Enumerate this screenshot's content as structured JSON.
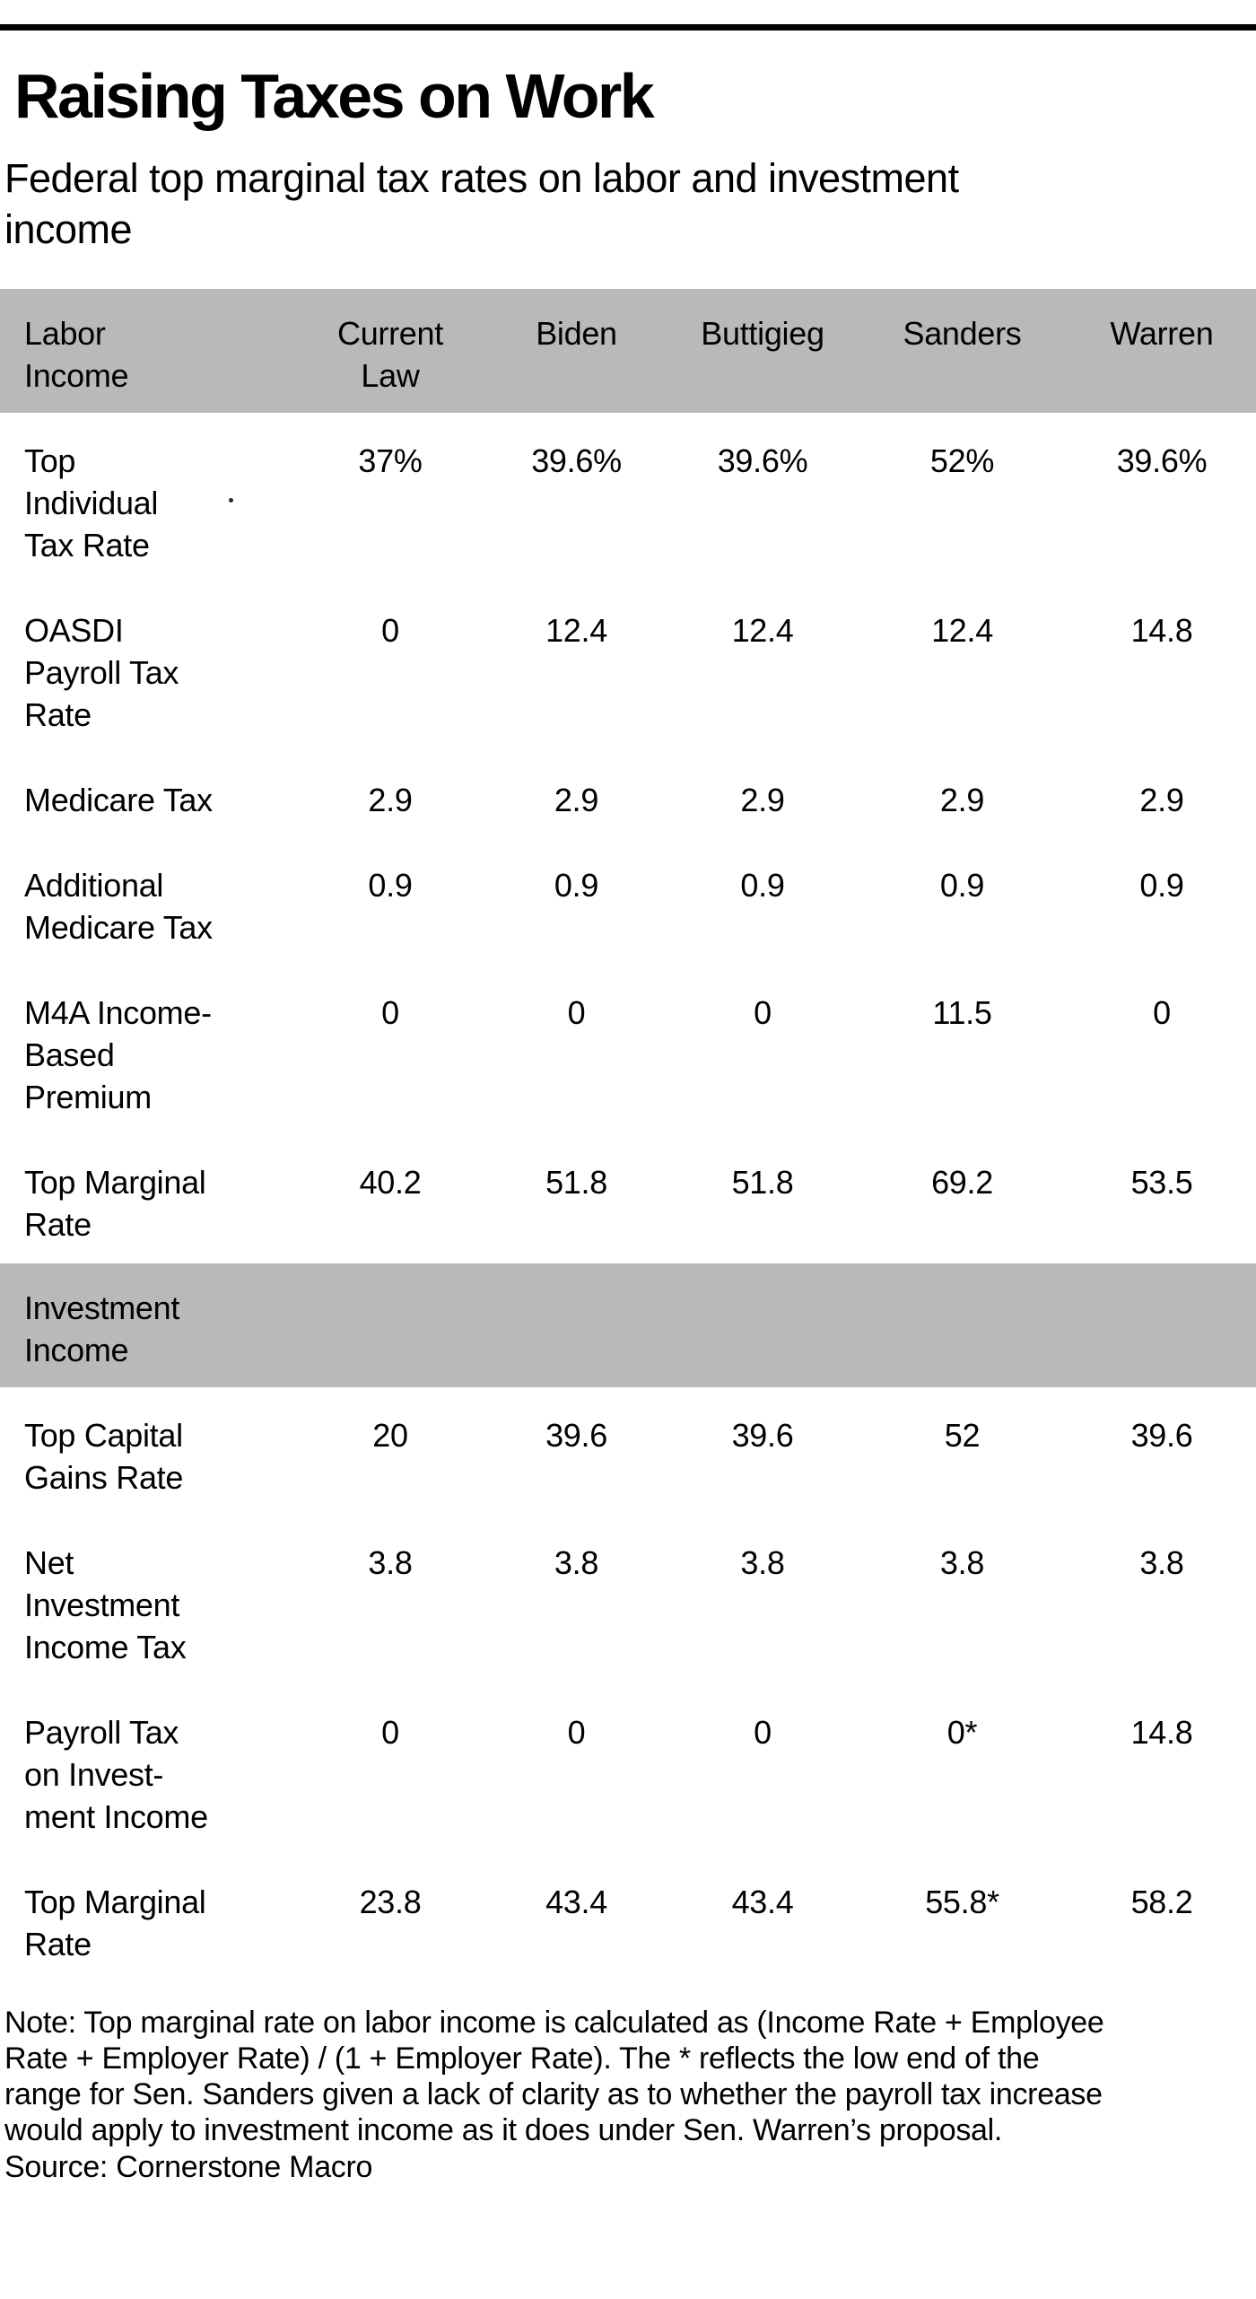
{
  "page": {
    "title": "Raising Taxes on Work",
    "subtitle": "Federal top marginal tax rates on labor and investment income",
    "note": "Note: Top marginal rate on labor income is calculated as (Income Rate + Employee Rate + Employer Rate) / (1 + Employer Rate). The * reflects the low end of the range for Sen. Sanders given a lack of clarity as to whether the payroll tax increase would apply to investment income as it does under Sen. Warren’s proposal.",
    "source": "Source: Cornerstone Macro",
    "stray_mark": "."
  },
  "colors": {
    "band_gray": "#b9b9b9",
    "rule_black": "#000000",
    "text": "#000000",
    "background": "#ffffff"
  },
  "table": {
    "section1_label": "Labor\nIncome",
    "section2_label": "Investment\nIncome",
    "columns": [
      "Current\nLaw",
      "Biden",
      "Buttigieg",
      "Sanders",
      "Warren"
    ],
    "labor_rows": [
      {
        "label": "Top\nIndividual\nTax Rate",
        "values": [
          "37%",
          "39.6%",
          "39.6%",
          "52%",
          "39.6%"
        ]
      },
      {
        "label": "OASDI\nPayroll Tax\nRate",
        "values": [
          "0",
          "12.4",
          "12.4",
          "12.4",
          "14.8"
        ]
      },
      {
        "label": "Medicare Tax",
        "values": [
          "2.9",
          "2.9",
          "2.9",
          "2.9",
          "2.9"
        ]
      },
      {
        "label": "Additional\nMedicare Tax",
        "values": [
          "0.9",
          "0.9",
          "0.9",
          "0.9",
          "0.9"
        ]
      },
      {
        "label": "M4A Income-\nBased\nPremium",
        "values": [
          "0",
          "0",
          "0",
          "11.5",
          "0"
        ]
      },
      {
        "label": "Top Marginal\nRate",
        "values": [
          "40.2",
          "51.8",
          "51.8",
          "69.2",
          "53.5"
        ]
      }
    ],
    "investment_rows": [
      {
        "label": "Top Capital\nGains Rate",
        "values": [
          "20",
          "39.6",
          "39.6",
          "52",
          "39.6"
        ]
      },
      {
        "label": "Net\nInvestment\nIncome Tax",
        "values": [
          "3.8",
          "3.8",
          "3.8",
          "3.8",
          "3.8"
        ]
      },
      {
        "label": "Payroll Tax\non Invest-\nment Income",
        "values": [
          "0",
          "0",
          "0",
          "0*",
          "14.8"
        ]
      },
      {
        "label": "Top Marginal\nRate",
        "values": [
          "23.8",
          "43.4",
          "43.4",
          "55.8*",
          "58.2"
        ]
      }
    ]
  },
  "chart_data": {
    "type": "table",
    "title": "Raising Taxes on Work",
    "subtitle": "Federal top marginal tax rates on labor and investment income",
    "columns": [
      "Current Law",
      "Biden",
      "Buttigieg",
      "Sanders",
      "Warren"
    ],
    "sections": [
      {
        "name": "Labor Income",
        "rows": [
          {
            "label": "Top Individual Tax Rate",
            "values": [
              "37%",
              "39.6%",
              "39.6%",
              "52%",
              "39.6%"
            ]
          },
          {
            "label": "OASDI Payroll Tax Rate",
            "values": [
              "0",
              "12.4",
              "12.4",
              "12.4",
              "14.8"
            ]
          },
          {
            "label": "Medicare Tax",
            "values": [
              "2.9",
              "2.9",
              "2.9",
              "2.9",
              "2.9"
            ]
          },
          {
            "label": "Additional Medicare Tax",
            "values": [
              "0.9",
              "0.9",
              "0.9",
              "0.9",
              "0.9"
            ]
          },
          {
            "label": "M4A Income-Based Premium",
            "values": [
              "0",
              "0",
              "0",
              "11.5",
              "0"
            ]
          },
          {
            "label": "Top Marginal Rate",
            "values": [
              "40.2",
              "51.8",
              "51.8",
              "69.2",
              "53.5"
            ]
          }
        ]
      },
      {
        "name": "Investment Income",
        "rows": [
          {
            "label": "Top Capital Gains Rate",
            "values": [
              "20",
              "39.6",
              "39.6",
              "52",
              "39.6"
            ]
          },
          {
            "label": "Net Investment Income Tax",
            "values": [
              "3.8",
              "3.8",
              "3.8",
              "3.8",
              "3.8"
            ]
          },
          {
            "label": "Payroll Tax on Investment Income",
            "values": [
              "0",
              "0",
              "0",
              "0*",
              "14.8"
            ]
          },
          {
            "label": "Top Marginal Rate",
            "values": [
              "23.8",
              "43.4",
              "43.4",
              "55.8*",
              "58.2"
            ]
          }
        ]
      }
    ],
    "note": "Note: Top marginal rate on labor income is calculated as (Income Rate + Employee Rate + Employer Rate) / (1 + Employer Rate). The * reflects the low end of the range for Sen. Sanders given a lack of clarity as to whether the payroll tax increase would apply to investment income as it does under Sen. Warren’s proposal.",
    "source": "Source: Cornerstone Macro"
  }
}
